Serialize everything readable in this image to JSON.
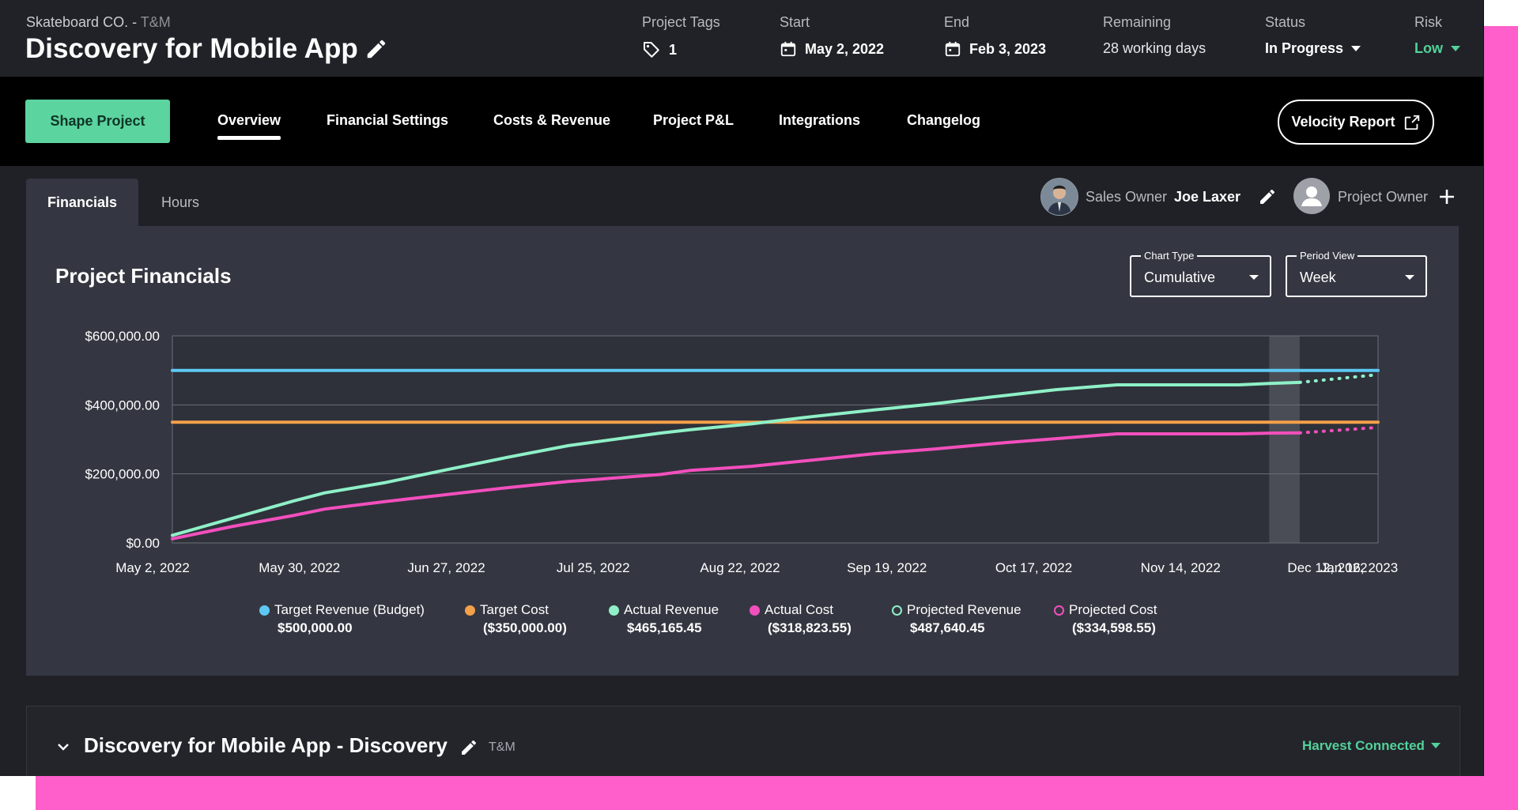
{
  "header": {
    "client": "Skateboard CO. - ",
    "billing_type": "T&M",
    "project_title": "Discovery for Mobile App",
    "tags_label": "Project Tags",
    "tags_count": "1",
    "start_label": "Start",
    "start_date": "May 2, 2022",
    "end_label": "End",
    "end_date": "Feb 3, 2023",
    "remaining_label": "Remaining",
    "remaining_value": "28 working days",
    "status_label": "Status",
    "status_value": "In Progress",
    "risk_label": "Risk",
    "risk_value": "Low"
  },
  "nav": {
    "shape_button": "Shape Project",
    "tabs": [
      {
        "label": "Overview"
      },
      {
        "label": "Financial Settings"
      },
      {
        "label": "Costs & Revenue"
      },
      {
        "label": "Project P&L"
      },
      {
        "label": "Integrations"
      },
      {
        "label": "Changelog"
      }
    ],
    "velocity_button": "Velocity Report"
  },
  "subtabs": {
    "financials": "Financials",
    "hours": "Hours"
  },
  "owners": {
    "sales_label": "Sales Owner",
    "sales_name": "Joe Laxer",
    "project_label": "Project Owner"
  },
  "panel": {
    "title": "Project Financials",
    "chart_type_label": "Chart Type",
    "chart_type_value": "Cumulative",
    "period_label": "Period View",
    "period_value": "Week"
  },
  "colors": {
    "target_revenue": "#5ec8f4",
    "target_cost": "#f5a04a",
    "actual_revenue": "#8ff0c8",
    "actual_cost": "#f24fbd",
    "accent_green": "#53d19a",
    "pink_background": "#ff5fcb"
  },
  "chart_data": {
    "type": "line",
    "ylim": [
      0,
      600000
    ],
    "y_ticks": [
      "$0.00",
      "$200,000.00",
      "$400,000.00",
      "$600,000.00"
    ],
    "x_ticks": [
      "May 2, 2022",
      "May 30, 2022",
      "Jun 27, 2022",
      "Jul 25, 2022",
      "Aug 22, 2022",
      "Sep 19, 2022",
      "Oct 17, 2022",
      "Nov 14, 2022",
      "Dec 12, 2022",
      "Jan 16, 2023"
    ],
    "x_start": "2022-05-02",
    "x_end": "2023-02-03",
    "current_week": [
      "2023-01-09",
      "2023-01-16"
    ],
    "series": [
      {
        "name": "Target Revenue (Budget)",
        "total": "$500,000.00",
        "style": "solid",
        "points": [
          [
            "2022-05-02",
            500000
          ],
          [
            "2023-02-03",
            500000
          ]
        ]
      },
      {
        "name": "Target Cost",
        "total": "($350,000.00)",
        "style": "solid",
        "points": [
          [
            "2022-05-02",
            350000
          ],
          [
            "2023-02-03",
            350000
          ]
        ]
      },
      {
        "name": "Actual Revenue",
        "total": "$465,165.45",
        "style": "solid",
        "points": [
          [
            "2022-05-02",
            22000
          ],
          [
            "2022-05-16",
            72000
          ],
          [
            "2022-05-30",
            122000
          ],
          [
            "2022-06-06",
            145000
          ],
          [
            "2022-06-20",
            175000
          ],
          [
            "2022-07-04",
            212000
          ],
          [
            "2022-07-18",
            248000
          ],
          [
            "2022-08-01",
            282000
          ],
          [
            "2022-08-22",
            318000
          ],
          [
            "2022-08-29",
            328000
          ],
          [
            "2022-09-12",
            345000
          ],
          [
            "2022-09-26",
            366000
          ],
          [
            "2022-10-10",
            385000
          ],
          [
            "2022-10-24",
            403000
          ],
          [
            "2022-11-07",
            424000
          ],
          [
            "2022-11-21",
            444000
          ],
          [
            "2022-12-05",
            458000
          ],
          [
            "2022-12-19",
            458000
          ],
          [
            "2023-01-02",
            458000
          ],
          [
            "2023-01-09",
            462000
          ],
          [
            "2023-01-16",
            465165
          ]
        ]
      },
      {
        "name": "Actual Cost",
        "total": "($318,823.55)",
        "style": "solid",
        "points": [
          [
            "2022-05-02",
            12000
          ],
          [
            "2022-05-16",
            48000
          ],
          [
            "2022-05-30",
            80000
          ],
          [
            "2022-06-06",
            98000
          ],
          [
            "2022-06-20",
            120000
          ],
          [
            "2022-07-04",
            140000
          ],
          [
            "2022-07-18",
            160000
          ],
          [
            "2022-08-01",
            178000
          ],
          [
            "2022-08-22",
            198000
          ],
          [
            "2022-08-29",
            210000
          ],
          [
            "2022-09-12",
            222000
          ],
          [
            "2022-09-26",
            240000
          ],
          [
            "2022-10-10",
            258000
          ],
          [
            "2022-10-24",
            272000
          ],
          [
            "2022-11-07",
            288000
          ],
          [
            "2022-11-21",
            302000
          ],
          [
            "2022-12-05",
            316000
          ],
          [
            "2022-12-19",
            316000
          ],
          [
            "2023-01-02",
            316000
          ],
          [
            "2023-01-09",
            318000
          ],
          [
            "2023-01-16",
            318824
          ]
        ]
      },
      {
        "name": "Projected Revenue",
        "total": "$487,640.45",
        "style": "dotted",
        "points": [
          [
            "2023-01-16",
            465165
          ],
          [
            "2023-02-03",
            487640
          ]
        ]
      },
      {
        "name": "Projected Cost",
        "total": "($334,598.55)",
        "style": "dotted",
        "points": [
          [
            "2023-01-16",
            318824
          ],
          [
            "2023-02-03",
            334599
          ]
        ]
      }
    ]
  },
  "section": {
    "title": "Discovery for Mobile App - Discovery",
    "billing_type": "T&M",
    "integration_status": "Harvest Connected"
  }
}
